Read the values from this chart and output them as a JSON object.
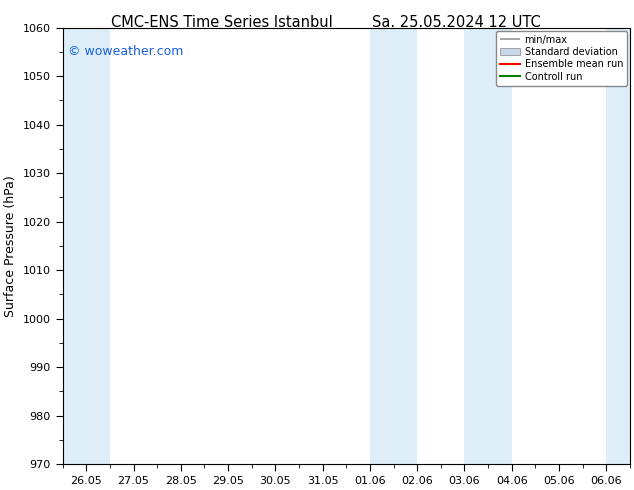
{
  "title_left": "CMC-ENS Time Series Istanbul",
  "title_right": "Sa. 25.05.2024 12 UTC",
  "ylabel": "Surface Pressure (hPa)",
  "ylim": [
    970,
    1060
  ],
  "yticks": [
    970,
    980,
    990,
    1000,
    1010,
    1020,
    1030,
    1040,
    1050,
    1060
  ],
  "x_labels": [
    "26.05",
    "27.05",
    "28.05",
    "29.05",
    "30.05",
    "31.05",
    "01.06",
    "02.06",
    "03.06",
    "04.06",
    "05.06",
    "06.06"
  ],
  "x_positions": [
    0,
    1,
    2,
    3,
    4,
    5,
    6,
    7,
    8,
    9,
    10,
    11
  ],
  "xlim": [
    -0.5,
    11.5
  ],
  "shaded_bands": [
    {
      "x_start": -0.5,
      "x_end": 0.5,
      "color": "#ddeef8"
    },
    {
      "x_start": 6.0,
      "x_end": 7.0,
      "color": "#ddeef8"
    },
    {
      "x_start": 8.0,
      "x_end": 9.0,
      "color": "#ddeef8"
    },
    {
      "x_start": 11.0,
      "x_end": 11.5,
      "color": "#ddeef8"
    }
  ],
  "watermark_text": "© woweather.com",
  "watermark_color": "#1a5fe0",
  "watermark_fontsize": 9,
  "legend_items": [
    {
      "label": "min/max",
      "type": "errorbar",
      "color": "#aaaaaa"
    },
    {
      "label": "Standard deviation",
      "type": "fill",
      "color": "#cccccc"
    },
    {
      "label": "Ensemble mean run",
      "type": "line",
      "color": "red"
    },
    {
      "label": "Controll run",
      "type": "line",
      "color": "green"
    }
  ],
  "bg_color": "white",
  "title_fontsize": 10.5,
  "tick_fontsize": 8,
  "ylabel_fontsize": 9
}
